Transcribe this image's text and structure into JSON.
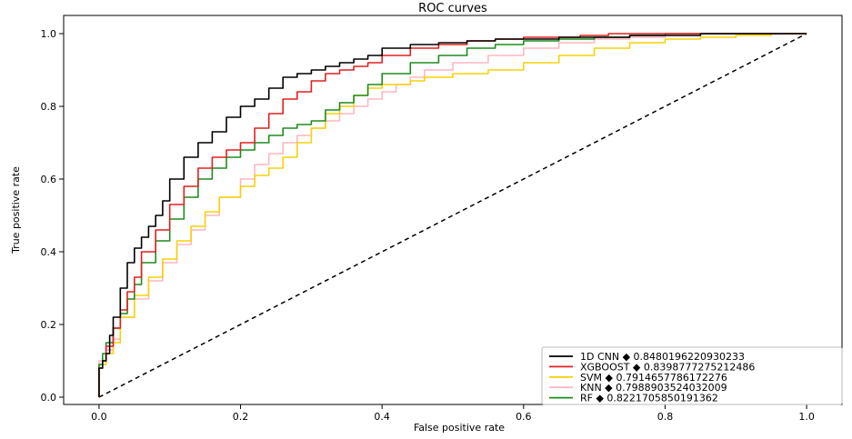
{
  "chart_data": {
    "type": "line",
    "title": "ROC curves",
    "xlabel": "False positive rate",
    "ylabel": "True positive rate",
    "xlim": [
      -0.05,
      1.05
    ],
    "ylim": [
      -0.02,
      1.05
    ],
    "xticks": [
      "0.0",
      "0.2",
      "0.4",
      "0.6",
      "0.8",
      "1.0"
    ],
    "yticks": [
      "0.0",
      "0.2",
      "0.4",
      "0.6",
      "0.8",
      "1.0"
    ],
    "grid": false,
    "legend_position": "bottom-right",
    "series": [
      {
        "name": "1D CNN ◆ 0.8480196220930233",
        "color": "#000000",
        "x": [
          0,
          0.005,
          0.01,
          0.015,
          0.02,
          0.03,
          0.04,
          0.05,
          0.06,
          0.07,
          0.08,
          0.09,
          0.1,
          0.12,
          0.14,
          0.16,
          0.18,
          0.2,
          0.22,
          0.24,
          0.26,
          0.28,
          0.3,
          0.32,
          0.34,
          0.36,
          0.38,
          0.4,
          0.44,
          0.48,
          0.52,
          0.56,
          0.6,
          0.65,
          0.7,
          0.75,
          0.8,
          0.85,
          0.9,
          0.95,
          1.0
        ],
        "y": [
          0,
          0.08,
          0.1,
          0.12,
          0.17,
          0.22,
          0.3,
          0.37,
          0.41,
          0.44,
          0.47,
          0.5,
          0.54,
          0.6,
          0.66,
          0.7,
          0.73,
          0.77,
          0.8,
          0.82,
          0.85,
          0.88,
          0.89,
          0.9,
          0.91,
          0.92,
          0.93,
          0.94,
          0.96,
          0.97,
          0.975,
          0.98,
          0.985,
          0.985,
          0.99,
          0.99,
          0.995,
          0.995,
          1.0,
          1.0,
          1.0
        ]
      },
      {
        "name": "XGBOOST ◆ 0.8398777275212486",
        "color": "#e02020",
        "x": [
          0,
          0.005,
          0.01,
          0.02,
          0.03,
          0.04,
          0.05,
          0.06,
          0.08,
          0.1,
          0.12,
          0.14,
          0.16,
          0.18,
          0.2,
          0.22,
          0.24,
          0.26,
          0.28,
          0.3,
          0.32,
          0.34,
          0.36,
          0.38,
          0.4,
          0.44,
          0.48,
          0.52,
          0.56,
          0.6,
          0.64,
          0.68,
          0.72,
          0.78,
          0.85,
          0.92,
          1.0
        ],
        "y": [
          0,
          0.08,
          0.1,
          0.14,
          0.19,
          0.24,
          0.29,
          0.33,
          0.4,
          0.46,
          0.53,
          0.58,
          0.63,
          0.66,
          0.68,
          0.7,
          0.74,
          0.78,
          0.82,
          0.84,
          0.87,
          0.89,
          0.9,
          0.91,
          0.92,
          0.94,
          0.96,
          0.97,
          0.98,
          0.985,
          0.99,
          0.99,
          0.995,
          1.0,
          1.0,
          1.0,
          1.0
        ]
      },
      {
        "name": "SVM ◆ 0.7914657786172276",
        "color": "#f5d20a",
        "x": [
          0,
          0.01,
          0.02,
          0.03,
          0.05,
          0.07,
          0.09,
          0.11,
          0.13,
          0.15,
          0.17,
          0.2,
          0.22,
          0.24,
          0.26,
          0.28,
          0.3,
          0.32,
          0.34,
          0.36,
          0.38,
          0.4,
          0.42,
          0.44,
          0.46,
          0.5,
          0.55,
          0.6,
          0.65,
          0.7,
          0.75,
          0.8,
          0.85,
          0.9,
          0.95,
          1.0
        ],
        "y": [
          0,
          0.09,
          0.12,
          0.15,
          0.22,
          0.28,
          0.33,
          0.38,
          0.43,
          0.47,
          0.51,
          0.55,
          0.58,
          0.61,
          0.63,
          0.66,
          0.7,
          0.74,
          0.78,
          0.8,
          0.83,
          0.85,
          0.86,
          0.86,
          0.87,
          0.88,
          0.89,
          0.9,
          0.92,
          0.94,
          0.96,
          0.975,
          0.985,
          0.99,
          0.995,
          1.0
        ]
      },
      {
        "name": "KNN ◆ 0.7988903524032009",
        "color": "#ffb6c1",
        "x": [
          0,
          0.01,
          0.02,
          0.03,
          0.05,
          0.07,
          0.09,
          0.11,
          0.13,
          0.15,
          0.17,
          0.2,
          0.22,
          0.24,
          0.26,
          0.28,
          0.3,
          0.32,
          0.34,
          0.36,
          0.38,
          0.4,
          0.42,
          0.44,
          0.46,
          0.5,
          0.55,
          0.6,
          0.65,
          0.7,
          0.75,
          0.8,
          0.85,
          0.9,
          0.95,
          1.0
        ],
        "y": [
          0,
          0.1,
          0.13,
          0.16,
          0.22,
          0.27,
          0.32,
          0.37,
          0.42,
          0.46,
          0.5,
          0.55,
          0.6,
          0.64,
          0.67,
          0.7,
          0.72,
          0.74,
          0.76,
          0.78,
          0.8,
          0.82,
          0.84,
          0.86,
          0.88,
          0.9,
          0.92,
          0.94,
          0.96,
          0.975,
          0.985,
          0.99,
          0.995,
          1.0,
          1.0,
          1.0
        ]
      },
      {
        "name": "RF ◆ 0.8221705850191362",
        "color": "#1e8c1e",
        "x": [
          0,
          0.005,
          0.01,
          0.02,
          0.03,
          0.04,
          0.05,
          0.06,
          0.08,
          0.1,
          0.12,
          0.14,
          0.16,
          0.18,
          0.2,
          0.22,
          0.24,
          0.26,
          0.28,
          0.3,
          0.32,
          0.34,
          0.36,
          0.38,
          0.4,
          0.44,
          0.48,
          0.52,
          0.56,
          0.6,
          0.65,
          0.7,
          0.75,
          0.8,
          0.85,
          0.9,
          0.95,
          1.0
        ],
        "y": [
          0,
          0.09,
          0.12,
          0.15,
          0.19,
          0.23,
          0.27,
          0.31,
          0.37,
          0.43,
          0.49,
          0.55,
          0.6,
          0.63,
          0.66,
          0.68,
          0.7,
          0.72,
          0.74,
          0.75,
          0.76,
          0.79,
          0.81,
          0.83,
          0.86,
          0.89,
          0.92,
          0.94,
          0.96,
          0.97,
          0.98,
          0.985,
          0.99,
          0.995,
          1.0,
          1.0,
          1.0,
          1.0
        ]
      }
    ],
    "reference_line": {
      "x": [
        0,
        1
      ],
      "y": [
        0,
        1
      ],
      "color": "#000000",
      "style": "dashed"
    }
  }
}
